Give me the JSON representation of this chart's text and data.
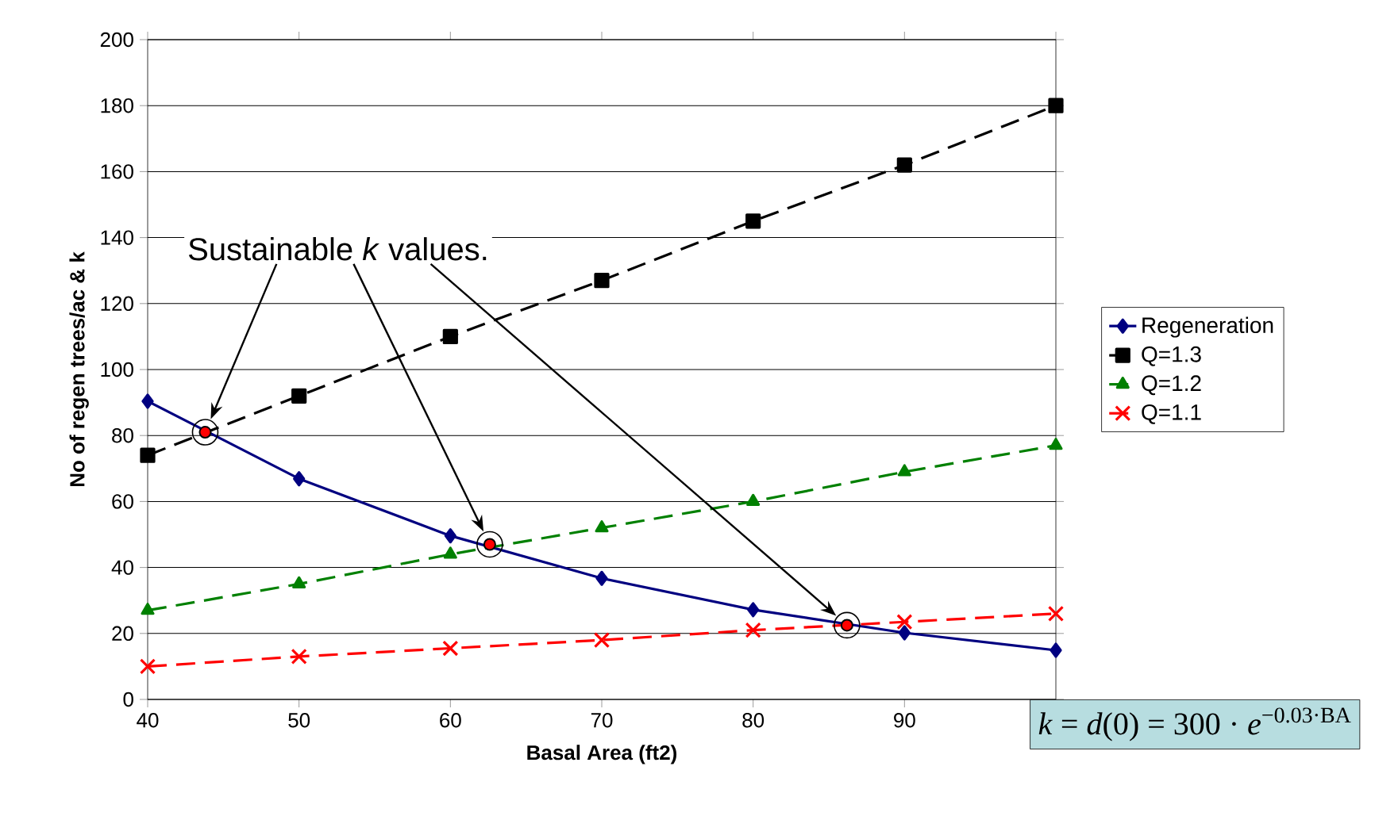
{
  "chart_data": {
    "type": "line",
    "xlabel": "Basal Area (ft2)",
    "ylabel": "No of regen trees/ac & k",
    "x": [
      40,
      50,
      60,
      70,
      80,
      90,
      100
    ],
    "series": [
      {
        "name": "Regeneration",
        "color": "#000080",
        "marker": "diamond",
        "line_style": "solid",
        "values": [
          90.4,
          66.9,
          49.6,
          36.7,
          27.2,
          20.2,
          14.9
        ]
      },
      {
        "name": "Q=1.3",
        "color": "#000000",
        "marker": "square",
        "line_style": "dashed",
        "values": [
          74,
          92,
          110,
          127,
          145,
          162,
          180
        ]
      },
      {
        "name": "Q=1.2",
        "color": "#008000",
        "marker": "triangle",
        "line_style": "dashed",
        "values": [
          27,
          35,
          44,
          52,
          60,
          69,
          77
        ]
      },
      {
        "name": "Q=1.1",
        "color": "#ff0000",
        "marker": "cross",
        "line_style": "dashed",
        "values": [
          10,
          13,
          15.5,
          18,
          21,
          23.5,
          26
        ]
      },
      {
        "type": "scatter",
        "color": "#ff0000",
        "marker": "circle",
        "x": [
          43.8,
          62.6,
          86.2
        ],
        "values": [
          81,
          47,
          22.5
        ]
      }
    ],
    "xlim": [
      40,
      100
    ],
    "ylim": [
      0,
      200
    ],
    "xticks": [
      40,
      50,
      60,
      70,
      80,
      90,
      {
        "value": 100,
        "label": null
      }
    ],
    "yticks": [
      0,
      20,
      40,
      60,
      80,
      100,
      120,
      140,
      160,
      180,
      200
    ],
    "grid": "y",
    "legend": "right",
    "annotations": [
      "Sustainable *k* values.",
      "*k* = *d*(0) = 300 · *e*$^{−0.03·BA}$"
    ]
  }
}
